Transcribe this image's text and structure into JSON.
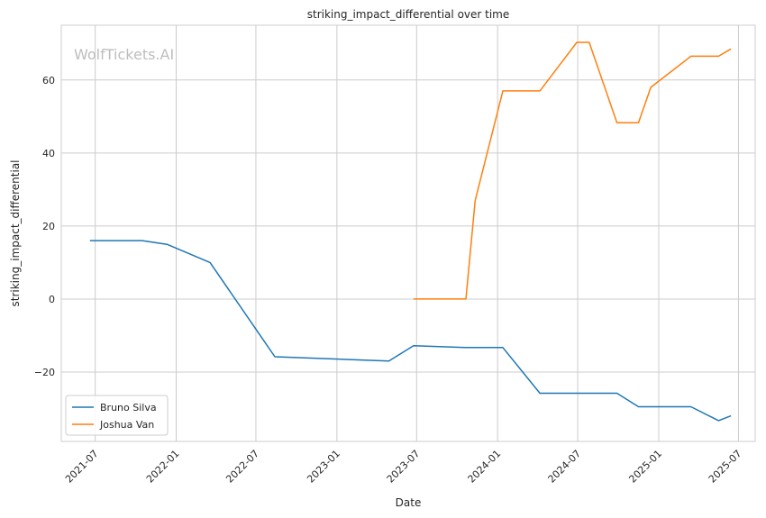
{
  "watermark": "WolfTickets.AI",
  "chart_data": {
    "type": "line",
    "title": "striking_impact_differential over time",
    "xlabel": "Date",
    "ylabel": "striking_impact_differential",
    "xlim": [
      "2021-04-15",
      "2025-08-08"
    ],
    "ylim": [
      -39,
      75
    ],
    "x_ticks": [
      "2021-07",
      "2022-01",
      "2022-07",
      "2023-01",
      "2023-07",
      "2024-01",
      "2024-07",
      "2025-01",
      "2025-07"
    ],
    "y_ticks": [
      -20,
      0,
      20,
      40,
      60
    ],
    "y_tick_labels": [
      "−20",
      "0",
      "20",
      "40",
      "60"
    ],
    "grid": true,
    "legend_position": "lower-left",
    "series": [
      {
        "name": "Bruno Silva",
        "color": "#1f77b4",
        "points": [
          [
            "2021-06-19",
            16
          ],
          [
            "2021-10-16",
            16
          ],
          [
            "2021-12-11",
            15
          ],
          [
            "2022-03-19",
            10
          ],
          [
            "2022-08-13",
            -15.8
          ],
          [
            "2023-04-29",
            -17
          ],
          [
            "2023-06-24",
            -12.8
          ],
          [
            "2023-10-21",
            -13.3
          ],
          [
            "2024-01-13",
            -13.3
          ],
          [
            "2024-04-06",
            -25.8
          ],
          [
            "2024-09-28",
            -25.8
          ],
          [
            "2024-11-16",
            -29.5
          ],
          [
            "2025-03-15",
            -29.5
          ],
          [
            "2025-05-17",
            -33.3
          ],
          [
            "2025-06-14",
            -32
          ]
        ]
      },
      {
        "name": "Joshua Van",
        "color": "#ff7f0e",
        "points": [
          [
            "2023-06-24",
            0
          ],
          [
            "2023-10-21",
            0
          ],
          [
            "2023-11-11",
            27
          ],
          [
            "2024-01-13",
            57
          ],
          [
            "2024-04-06",
            57
          ],
          [
            "2024-06-29",
            70.3
          ],
          [
            "2024-07-27",
            70.3
          ],
          [
            "2024-09-28",
            48.3
          ],
          [
            "2024-11-16",
            48.3
          ],
          [
            "2024-12-14",
            58
          ],
          [
            "2025-03-15",
            66.5
          ],
          [
            "2025-05-17",
            66.5
          ],
          [
            "2025-06-14",
            68.5
          ]
        ]
      }
    ]
  }
}
